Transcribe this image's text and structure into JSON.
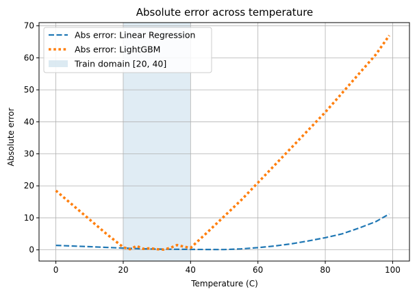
{
  "chart_data": {
    "type": "line",
    "title": "Absolute error across temperature",
    "xlabel": "Temperature (C)",
    "ylabel": "Absolute error",
    "xlim": [
      -5,
      105
    ],
    "ylim": [
      -3.5,
      71
    ],
    "xticks": [
      0,
      20,
      40,
      60,
      80,
      100
    ],
    "yticks": [
      0,
      10,
      20,
      30,
      40,
      50,
      60,
      70
    ],
    "grid": true,
    "legend_position": "top-left",
    "shaded_region": {
      "label": "Train domain [20, 40]",
      "x_start": 20,
      "x_end": 40,
      "color": "#d6e6f0"
    },
    "series": [
      {
        "name": "Abs error: Linear Regression",
        "color": "#1f77b4",
        "style": "dashed",
        "x": [
          0,
          10,
          20,
          25,
          30,
          35,
          40,
          45,
          50,
          55,
          60,
          65,
          70,
          75,
          80,
          85,
          90,
          95,
          99
        ],
        "y": [
          1.4,
          1.0,
          0.55,
          0.35,
          0.25,
          0.18,
          0.15,
          0.12,
          0.1,
          0.3,
          0.7,
          1.2,
          1.9,
          2.8,
          3.8,
          5.0,
          6.8,
          8.8,
          11.2
        ]
      },
      {
        "name": "Abs error: LightGBM",
        "color": "#ff7f0e",
        "style": "dotted",
        "x": [
          0,
          5,
          10,
          15,
          20,
          22,
          24,
          26,
          28,
          30,
          32,
          34,
          36,
          38,
          40,
          45,
          50,
          55,
          60,
          65,
          70,
          75,
          80,
          85,
          90,
          95,
          99
        ],
        "y": [
          18.5,
          14,
          9.5,
          5,
          0.8,
          0.2,
          1.2,
          0.3,
          0.5,
          0.2,
          0.1,
          0.6,
          1.5,
          1.0,
          0.6,
          5.5,
          10.5,
          15.5,
          21,
          26.5,
          32,
          37.5,
          43,
          49,
          55,
          61,
          67
        ]
      }
    ]
  }
}
